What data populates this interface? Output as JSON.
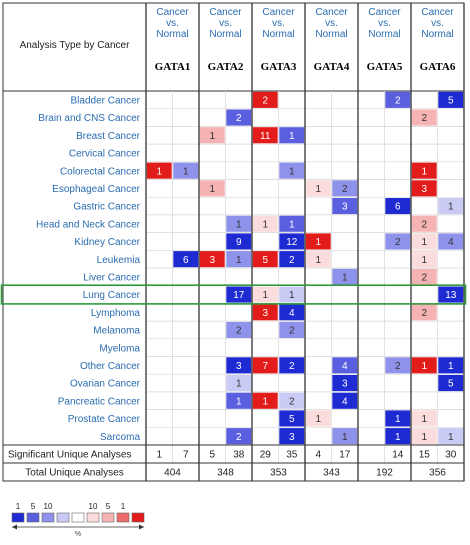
{
  "header": {
    "analysis_label": "Analysis Type by Cancer",
    "comparison_label": "Cancer vs. Normal"
  },
  "chart_data": {
    "type": "heatmap",
    "genes": [
      "GATA1",
      "GATA2",
      "GATA3",
      "GATA4",
      "GATA5",
      "GATA6"
    ],
    "sub_columns": [
      "over-expression (red)",
      "under-expression (blue)"
    ],
    "cancers": [
      "Bladder Cancer",
      "Brain and CNS Cancer",
      "Breast Cancer",
      "Cervical Cancer",
      "Colorectal Cancer",
      "Esophageal Cancer",
      "Gastric Cancer",
      "Head and Neck Cancer",
      "Kidney Cancer",
      "Leukemia",
      "Liver Cancer",
      "Lung Cancer",
      "Lymphoma",
      "Melanoma",
      "Myeloma",
      "Other Cancer",
      "Ovarian Cancer",
      "Pancreatic Cancer",
      "Prostate Cancer",
      "Sarcoma"
    ],
    "highlighted_row": "Lung Cancer",
    "cells": [
      {
        "row": 0,
        "gene": 2,
        "dir": "up",
        "value": 2,
        "rank": 1
      },
      {
        "row": 0,
        "gene": 4,
        "dir": "down",
        "value": 2,
        "rank": 5
      },
      {
        "row": 0,
        "gene": 5,
        "dir": "down",
        "value": 5,
        "rank": 1
      },
      {
        "row": 1,
        "gene": 1,
        "dir": "down",
        "value": 2,
        "rank": 5
      },
      {
        "row": 1,
        "gene": 5,
        "dir": "up",
        "value": 2,
        "rank": 10
      },
      {
        "row": 2,
        "gene": 1,
        "dir": "up",
        "value": 1,
        "rank": 10
      },
      {
        "row": 2,
        "gene": 2,
        "dir": "up",
        "value": 11,
        "rank": 1
      },
      {
        "row": 2,
        "gene": 2,
        "dir": "down",
        "value": 1,
        "rank": 5
      },
      {
        "row": 4,
        "gene": 0,
        "dir": "up",
        "value": 1,
        "rank": 1
      },
      {
        "row": 4,
        "gene": 0,
        "dir": "down",
        "value": 1,
        "rank": 10
      },
      {
        "row": 4,
        "gene": 2,
        "dir": "down",
        "value": 1,
        "rank": 10
      },
      {
        "row": 4,
        "gene": 5,
        "dir": "up",
        "value": 1,
        "rank": 1
      },
      {
        "row": 5,
        "gene": 1,
        "dir": "up",
        "value": 1,
        "rank": 10
      },
      {
        "row": 5,
        "gene": 3,
        "dir": "up",
        "value": 1,
        "rank": "gt10"
      },
      {
        "row": 5,
        "gene": 3,
        "dir": "down",
        "value": 2,
        "rank": 10
      },
      {
        "row": 5,
        "gene": 5,
        "dir": "up",
        "value": 3,
        "rank": 1
      },
      {
        "row": 6,
        "gene": 3,
        "dir": "down",
        "value": 3,
        "rank": 5
      },
      {
        "row": 6,
        "gene": 4,
        "dir": "down",
        "value": 6,
        "rank": 1
      },
      {
        "row": 6,
        "gene": 5,
        "dir": "down",
        "value": 1,
        "rank": "gt10"
      },
      {
        "row": 7,
        "gene": 1,
        "dir": "down",
        "value": 1,
        "rank": 10
      },
      {
        "row": 7,
        "gene": 2,
        "dir": "up",
        "value": 1,
        "rank": "gt10"
      },
      {
        "row": 7,
        "gene": 2,
        "dir": "down",
        "value": 1,
        "rank": 5
      },
      {
        "row": 7,
        "gene": 5,
        "dir": "up",
        "value": 2,
        "rank": 10
      },
      {
        "row": 8,
        "gene": 1,
        "dir": "down",
        "value": 9,
        "rank": 1
      },
      {
        "row": 8,
        "gene": 2,
        "dir": "down",
        "value": 12,
        "rank": 1
      },
      {
        "row": 8,
        "gene": 3,
        "dir": "up",
        "value": 1,
        "rank": 1
      },
      {
        "row": 8,
        "gene": 4,
        "dir": "down",
        "value": 2,
        "rank": 10
      },
      {
        "row": 8,
        "gene": 5,
        "dir": "up",
        "value": 1,
        "rank": "gt10"
      },
      {
        "row": 8,
        "gene": 5,
        "dir": "down",
        "value": 4,
        "rank": 10
      },
      {
        "row": 9,
        "gene": 0,
        "dir": "down",
        "value": 6,
        "rank": 1
      },
      {
        "row": 9,
        "gene": 1,
        "dir": "up",
        "value": 3,
        "rank": 1
      },
      {
        "row": 9,
        "gene": 1,
        "dir": "down",
        "value": 1,
        "rank": 10
      },
      {
        "row": 9,
        "gene": 2,
        "dir": "up",
        "value": 5,
        "rank": 1
      },
      {
        "row": 9,
        "gene": 2,
        "dir": "down",
        "value": 2,
        "rank": 1
      },
      {
        "row": 9,
        "gene": 3,
        "dir": "up",
        "value": 1,
        "rank": "gt10"
      },
      {
        "row": 9,
        "gene": 5,
        "dir": "up",
        "value": 1,
        "rank": "gt10"
      },
      {
        "row": 10,
        "gene": 3,
        "dir": "down",
        "value": 1,
        "rank": 10
      },
      {
        "row": 10,
        "gene": 5,
        "dir": "up",
        "value": 2,
        "rank": 10
      },
      {
        "row": 11,
        "gene": 1,
        "dir": "down",
        "value": 17,
        "rank": 1
      },
      {
        "row": 11,
        "gene": 2,
        "dir": "up",
        "value": 1,
        "rank": "gt10"
      },
      {
        "row": 11,
        "gene": 2,
        "dir": "down",
        "value": 1,
        "rank": "gt10"
      },
      {
        "row": 11,
        "gene": 5,
        "dir": "down",
        "value": 13,
        "rank": 1
      },
      {
        "row": 12,
        "gene": 2,
        "dir": "up",
        "value": 3,
        "rank": 1
      },
      {
        "row": 12,
        "gene": 2,
        "dir": "down",
        "value": 4,
        "rank": 1
      },
      {
        "row": 12,
        "gene": 5,
        "dir": "up",
        "value": 2,
        "rank": 10
      },
      {
        "row": 13,
        "gene": 1,
        "dir": "down",
        "value": 2,
        "rank": 10
      },
      {
        "row": 13,
        "gene": 2,
        "dir": "down",
        "value": 2,
        "rank": 10
      },
      {
        "row": 15,
        "gene": 1,
        "dir": "down",
        "value": 3,
        "rank": 1
      },
      {
        "row": 15,
        "gene": 2,
        "dir": "up",
        "value": 7,
        "rank": 1
      },
      {
        "row": 15,
        "gene": 2,
        "dir": "down",
        "value": 2,
        "rank": 1
      },
      {
        "row": 15,
        "gene": 3,
        "dir": "down",
        "value": 4,
        "rank": 5
      },
      {
        "row": 15,
        "gene": 4,
        "dir": "down",
        "value": 2,
        "rank": 10
      },
      {
        "row": 15,
        "gene": 5,
        "dir": "up",
        "value": 1,
        "rank": 1
      },
      {
        "row": 15,
        "gene": 5,
        "dir": "down",
        "value": 1,
        "rank": 1
      },
      {
        "row": 16,
        "gene": 1,
        "dir": "down",
        "value": 1,
        "rank": "gt10"
      },
      {
        "row": 16,
        "gene": 3,
        "dir": "down",
        "value": 3,
        "rank": 1
      },
      {
        "row": 16,
        "gene": 5,
        "dir": "down",
        "value": 5,
        "rank": 1
      },
      {
        "row": 17,
        "gene": 1,
        "dir": "down",
        "value": 1,
        "rank": 5
      },
      {
        "row": 17,
        "gene": 2,
        "dir": "up",
        "value": 1,
        "rank": 1
      },
      {
        "row": 17,
        "gene": 2,
        "dir": "down",
        "value": 2,
        "rank": "gt10"
      },
      {
        "row": 17,
        "gene": 3,
        "dir": "down",
        "value": 4,
        "rank": 1
      },
      {
        "row": 18,
        "gene": 2,
        "dir": "down",
        "value": 5,
        "rank": 1
      },
      {
        "row": 18,
        "gene": 3,
        "dir": "up",
        "value": 1,
        "rank": "gt10"
      },
      {
        "row": 18,
        "gene": 4,
        "dir": "down",
        "value": 1,
        "rank": 1
      },
      {
        "row": 18,
        "gene": 5,
        "dir": "up",
        "value": 1,
        "rank": "gt10"
      },
      {
        "row": 19,
        "gene": 1,
        "dir": "down",
        "value": 2,
        "rank": 5
      },
      {
        "row": 19,
        "gene": 2,
        "dir": "down",
        "value": 3,
        "rank": 1
      },
      {
        "row": 19,
        "gene": 3,
        "dir": "down",
        "value": 1,
        "rank": 10
      },
      {
        "row": 19,
        "gene": 4,
        "dir": "down",
        "value": 1,
        "rank": 1
      },
      {
        "row": 19,
        "gene": 5,
        "dir": "up",
        "value": 1,
        "rank": "gt10"
      },
      {
        "row": 19,
        "gene": 5,
        "dir": "down",
        "value": 1,
        "rank": "gt10"
      }
    ],
    "significant_unique_label": "Significant Unique Analyses",
    "significant_unique": [
      [
        "1",
        "7"
      ],
      [
        "5",
        "38"
      ],
      [
        "29",
        "35"
      ],
      [
        "4",
        "17"
      ],
      [
        "",
        "14"
      ],
      [
        "15",
        "30"
      ]
    ],
    "total_unique_label": "Total Unique Analyses",
    "total_unique": [
      "404",
      "348",
      "353",
      "343",
      "192",
      "356"
    ],
    "legend": {
      "blue_ticks": [
        "1",
        "5",
        "10"
      ],
      "red_ticks": [
        "10",
        "5",
        "1"
      ],
      "unit": "%",
      "colors": {
        "up": {
          "1": "#e21b1b",
          "5": "#ec6c6c",
          "10": "#f6b3b3",
          "gt10": "#fbdcdc"
        },
        "down": {
          "1": "#1e2ad2",
          "5": "#5a5fe0",
          "10": "#8f92ea",
          "gt10": "#c9cbf5"
        }
      }
    }
  }
}
